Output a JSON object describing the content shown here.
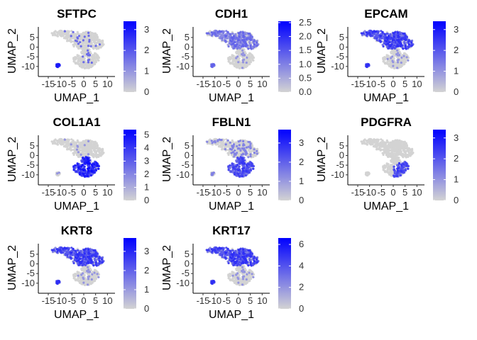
{
  "chart_data": [
    {
      "type": "scatter",
      "title": "SFTPC",
      "xlabel": "UMAP_1",
      "ylabel": "UMAP_2",
      "x_ticks": [
        "-15",
        "-10",
        "-5",
        "0",
        "5",
        "10"
      ],
      "y_ticks": [
        "5",
        "0",
        "-5",
        "-10"
      ],
      "xlim": [
        -18,
        12
      ],
      "ylim": [
        -13,
        9
      ],
      "legend": {
        "range": [
          0,
          3.4
        ],
        "ticks": [
          "0",
          "1",
          "2",
          "3"
        ],
        "tick_values": [
          0,
          1,
          2,
          3
        ]
      },
      "pattern": "sparse"
    },
    {
      "type": "scatter",
      "title": "CDH1",
      "xlabel": "UMAP_1",
      "ylabel": "UMAP_2",
      "x_ticks": [
        "-15",
        "-10",
        "-5",
        "0",
        "5",
        "10"
      ],
      "y_ticks": [
        "5",
        "0",
        "-5",
        "-10"
      ],
      "xlim": [
        -18,
        12
      ],
      "ylim": [
        -13,
        9
      ],
      "legend": {
        "range": [
          0,
          2.55
        ],
        "ticks": [
          "0.0",
          "0.5",
          "1.0",
          "1.5",
          "2.0",
          "2.5"
        ],
        "tick_values": [
          0,
          0.5,
          1,
          1.5,
          2,
          2.5
        ]
      },
      "pattern": "epithelial-medium"
    },
    {
      "type": "scatter",
      "title": "EPCAM",
      "xlabel": "UMAP_1",
      "ylabel": "UMAP_2",
      "x_ticks": [
        "-15",
        "-10",
        "-5",
        "0",
        "5",
        "10"
      ],
      "y_ticks": [
        "5",
        "0",
        "-5",
        "-10"
      ],
      "xlim": [
        -18,
        12
      ],
      "ylim": [
        -13,
        9
      ],
      "legend": {
        "range": [
          0,
          3.4
        ],
        "ticks": [
          "0",
          "1",
          "2",
          "3"
        ],
        "tick_values": [
          0,
          1,
          2,
          3
        ]
      },
      "pattern": "epithelial-strong"
    },
    {
      "type": "scatter",
      "title": "COL1A1",
      "xlabel": "UMAP_1",
      "ylabel": "UMAP_2",
      "x_ticks": [
        "-15",
        "-10",
        "-5",
        "0",
        "5",
        "10"
      ],
      "y_ticks": [
        "5",
        "0",
        "-5",
        "-10"
      ],
      "xlim": [
        -18,
        12
      ],
      "ylim": [
        -13,
        9
      ],
      "legend": {
        "range": [
          0,
          5.4
        ],
        "ticks": [
          "0",
          "1",
          "2",
          "3",
          "4",
          "5"
        ],
        "tick_values": [
          0,
          1,
          2,
          3,
          4,
          5
        ]
      },
      "pattern": "stromal-strong"
    },
    {
      "type": "scatter",
      "title": "FBLN1",
      "xlabel": "UMAP_1",
      "ylabel": "UMAP_2",
      "x_ticks": [
        "-15",
        "-10",
        "-5",
        "0",
        "5",
        "10"
      ],
      "y_ticks": [
        "5",
        "0",
        "-5",
        "-10"
      ],
      "xlim": [
        -18,
        12
      ],
      "ylim": [
        -13,
        9
      ],
      "legend": {
        "range": [
          0,
          3.7
        ],
        "ticks": [
          "0",
          "1",
          "2",
          "3"
        ],
        "tick_values": [
          0,
          1,
          2,
          3
        ]
      },
      "pattern": "stromal-medium"
    },
    {
      "type": "scatter",
      "title": "PDGFRA",
      "xlabel": "UMAP_1",
      "ylabel": "UMAP_2",
      "x_ticks": [
        "-15",
        "-10",
        "-5",
        "0",
        "5",
        "10"
      ],
      "y_ticks": [
        "5",
        "0",
        "-5",
        "-10"
      ],
      "xlim": [
        -18,
        12
      ],
      "ylim": [
        -13,
        9
      ],
      "legend": {
        "range": [
          0,
          3.4
        ],
        "ticks": [
          "0",
          "1",
          "2",
          "3"
        ],
        "tick_values": [
          0,
          1,
          2,
          3
        ]
      },
      "pattern": "stromal-right"
    },
    {
      "type": "scatter",
      "title": "KRT8",
      "xlabel": "UMAP_1",
      "ylabel": "UMAP_2",
      "x_ticks": [
        "-15",
        "-10",
        "-5",
        "0",
        "5",
        "10"
      ],
      "y_ticks": [
        "5",
        "0",
        "-5",
        "-10"
      ],
      "xlim": [
        -18,
        12
      ],
      "ylim": [
        -13,
        9
      ],
      "legend": {
        "range": [
          0,
          3.7
        ],
        "ticks": [
          "0",
          "1",
          "2",
          "3"
        ],
        "tick_values": [
          0,
          1,
          2,
          3
        ]
      },
      "pattern": "epithelial-strong"
    },
    {
      "type": "scatter",
      "title": "KRT17",
      "xlabel": "UMAP_1",
      "ylabel": "UMAP_2",
      "x_ticks": [
        "-15",
        "-10",
        "-5",
        "0",
        "5",
        "10"
      ],
      "y_ticks": [
        "5",
        "0",
        "-5",
        "-10"
      ],
      "xlim": [
        -18,
        12
      ],
      "ylim": [
        -13,
        9
      ],
      "legend": {
        "range": [
          0,
          6.6
        ],
        "ticks": [
          "0",
          "2",
          "4",
          "6"
        ],
        "tick_values": [
          0,
          2,
          4,
          6
        ]
      },
      "pattern": "epithelial-strong"
    }
  ],
  "colors": {
    "low": "#d3d3d3",
    "high": "#0000ff",
    "axis": "#333333"
  }
}
